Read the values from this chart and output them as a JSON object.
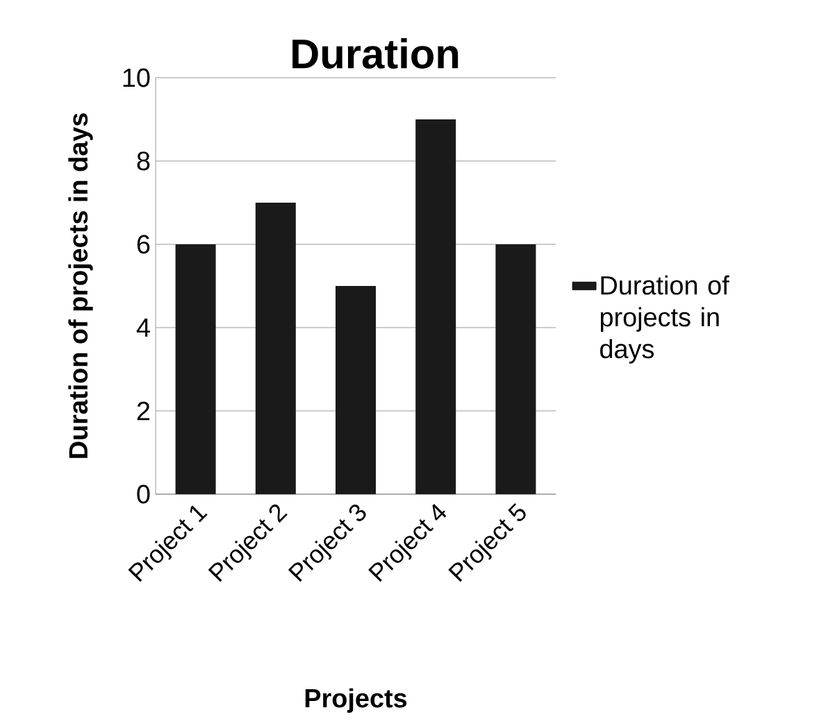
{
  "chart_data": {
    "type": "bar",
    "title": "Duration",
    "xlabel": "Projects",
    "ylabel": "Duration of projects in days",
    "categories": [
      "Project 1",
      "Project 2",
      "Project 3",
      "Project 4",
      "Project 5"
    ],
    "series": [
      {
        "name": "Duration of projects in days",
        "color": "#1a1a1a",
        "values": [
          6,
          7,
          5,
          9,
          6
        ]
      }
    ],
    "ylim": [
      0,
      10
    ],
    "yticks": [
      0,
      2,
      4,
      6,
      8,
      10
    ],
    "grid": "y",
    "legend": "right"
  }
}
